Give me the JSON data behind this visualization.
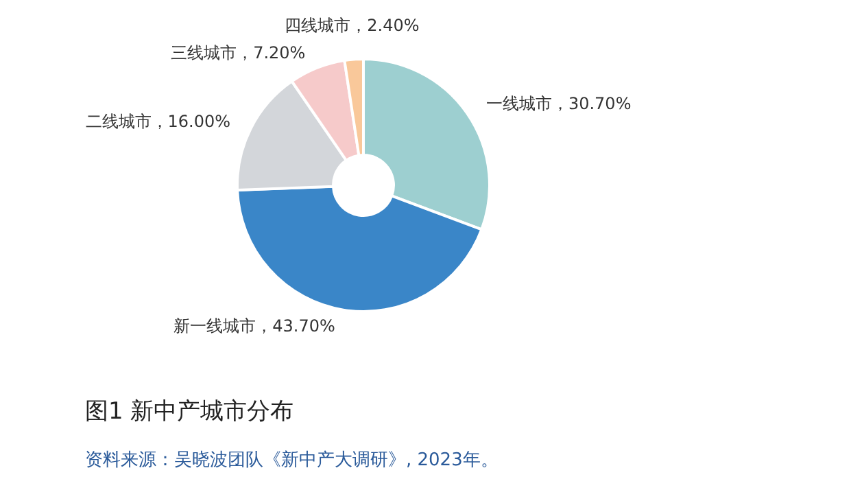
{
  "chart_data": {
    "type": "donut",
    "title": "图1 新中产城市分布",
    "categories": [
      "一线城市",
      "新一线城市",
      "二线城市",
      "三线城市",
      "四线城市"
    ],
    "values": [
      30.7,
      43.7,
      16.0,
      7.2,
      2.4
    ],
    "colors": [
      "#9dcfd0",
      "#3a86c8",
      "#d3d6da",
      "#f6caca",
      "#f9c89a"
    ],
    "value_labels": [
      "30.70%",
      "43.70%",
      "16.00%",
      "7.20%",
      "2.40%"
    ],
    "annotations": [
      "资料来源：吴晓波团队《新中产大调研》, 2023年。"
    ]
  }
}
